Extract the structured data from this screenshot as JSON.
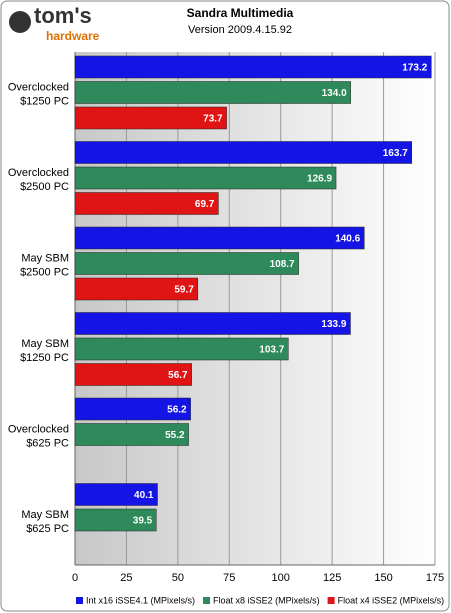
{
  "chart_data": {
    "type": "hbar",
    "logo_text": "tom's",
    "logo_subtext": "hardware",
    "title": "Sandra Multimedia",
    "subtitle": "Version 2009.4.15.92",
    "categories": [
      [
        "Overclocked",
        "$1250 PC"
      ],
      [
        "Overclocked",
        "$2500 PC"
      ],
      [
        "May SBM",
        "$2500 PC"
      ],
      [
        "May SBM",
        "$1250 PC"
      ],
      [
        "Overclocked",
        "$625 PC"
      ],
      [
        "May SBM",
        "$625 PC"
      ]
    ],
    "series": [
      {
        "name": "Int x16 iSSE4.1 (MPixels/s)",
        "color": "#1414e6",
        "values": [
          173.2,
          163.7,
          140.6,
          133.9,
          56.2,
          40.1
        ],
        "value_labels": [
          "173.2",
          "163.7",
          "140.6",
          "133.9",
          "56.2",
          "40.1"
        ]
      },
      {
        "name": "Float x8 iSSE2 (MPixels/s)",
        "color": "#2e8a5a",
        "values": [
          134.0,
          126.9,
          108.7,
          103.7,
          55.2,
          39.5
        ],
        "value_labels": [
          "134.0",
          "126.9",
          "108.7",
          "103.7",
          "55.2",
          "39.5"
        ]
      },
      {
        "name": "Float x4 iSSE2 (MPixels/s)",
        "color": "#e01414",
        "values": [
          73.7,
          69.7,
          59.7,
          56.7,
          null,
          null
        ],
        "value_labels": [
          "73.7",
          "69.7",
          "59.7",
          "56.7",
          null,
          null
        ]
      }
    ],
    "xlim": [
      0,
      175
    ],
    "xticks": [
      0,
      25,
      50,
      75,
      100,
      125,
      150,
      175
    ],
    "grid": true
  }
}
